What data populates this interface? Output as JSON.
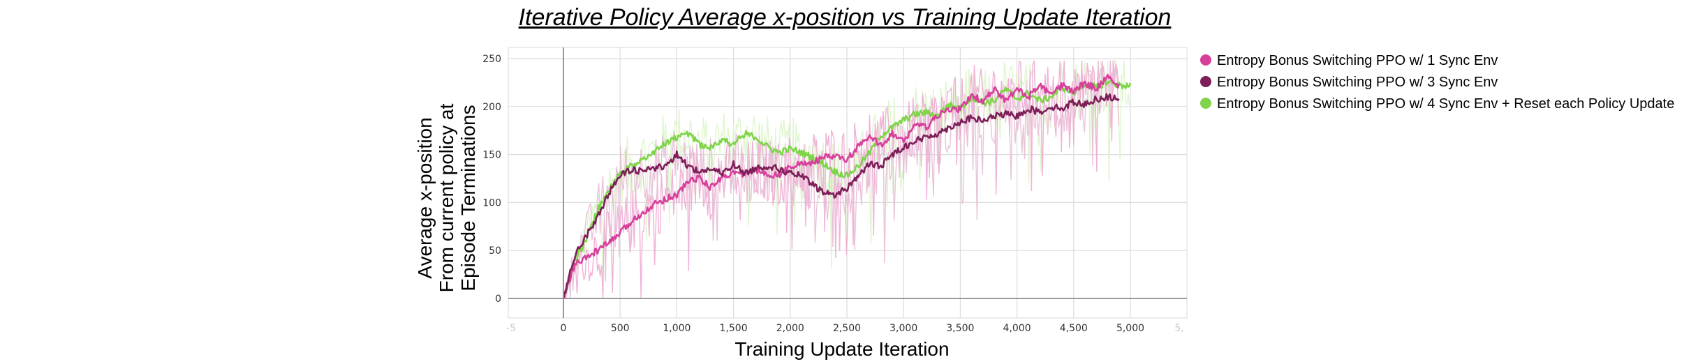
{
  "chart_data": {
    "type": "line",
    "title": "Iterative Policy Average x-position vs Training Update Iteration",
    "xlabel": "Training Update Iteration",
    "ylabel_lines": [
      "Average x-position",
      "From current policy at",
      "Episode Terminations"
    ],
    "xlim": [
      -500,
      5500
    ],
    "ylim": [
      -20,
      255
    ],
    "x_ticks": [
      0,
      500,
      1000,
      1500,
      2000,
      2500,
      3000,
      3500,
      4000,
      4500,
      5000
    ],
    "x_tick_labels": [
      "0",
      "500",
      "1,000",
      "1,500",
      "2,000",
      "2,500",
      "3,000",
      "3,500",
      "4,000",
      "4,500",
      "5,000"
    ],
    "x_edge_labels": [
      "-5",
      "5,"
    ],
    "y_ticks": [
      0,
      50,
      100,
      150,
      200,
      250
    ],
    "y_tick_labels": [
      "0",
      "50",
      "100",
      "150",
      "200",
      "250"
    ],
    "grid": true,
    "legend_position": "right",
    "series": [
      {
        "name": "Entropy Bonus Switching PPO w/ 1 Sync Env",
        "color": "#d6409b",
        "raw_color": "#eeaad2",
        "x": [
          0,
          100,
          200,
          300,
          400,
          500,
          600,
          700,
          800,
          900,
          1000,
          1100,
          1200,
          1300,
          1400,
          1500,
          1600,
          1700,
          1800,
          1900,
          2000,
          2100,
          2200,
          2300,
          2400,
          2500,
          2600,
          2700,
          2800,
          2900,
          3000,
          3100,
          3200,
          3300,
          3400,
          3500,
          3600,
          3700,
          3800,
          3900,
          4000,
          4100,
          4200,
          4300,
          4400,
          4500,
          4600,
          4700,
          4800,
          4900
        ],
        "values": [
          0,
          35,
          42,
          50,
          58,
          68,
          80,
          90,
          98,
          104,
          108,
          122,
          126,
          115,
          127,
          131,
          130,
          134,
          130,
          128,
          138,
          140,
          142,
          147,
          148,
          144,
          158,
          168,
          160,
          172,
          163,
          182,
          178,
          190,
          197,
          197,
          212,
          205,
          218,
          206,
          218,
          210,
          222,
          212,
          222,
          216,
          225,
          218,
          232,
          222
        ]
      },
      {
        "name": "Entropy Bonus Switching PPO w/ 3 Sync Env",
        "color": "#7d1f58",
        "raw_color": "#e7bcd6",
        "x": [
          0,
          100,
          200,
          300,
          400,
          500,
          600,
          700,
          800,
          900,
          1000,
          1100,
          1200,
          1300,
          1400,
          1500,
          1600,
          1700,
          1800,
          1900,
          2000,
          2100,
          2200,
          2300,
          2400,
          2500,
          2600,
          2700,
          2800,
          2900,
          3000,
          3100,
          3200,
          3300,
          3400,
          3500,
          3600,
          3700,
          3800,
          3900,
          4000,
          4100,
          4200,
          4300,
          4400,
          4500,
          4600,
          4700,
          4800,
          4900
        ],
        "values": [
          0,
          45,
          65,
          85,
          110,
          128,
          134,
          132,
          136,
          138,
          150,
          138,
          132,
          135,
          130,
          140,
          130,
          136,
          138,
          135,
          130,
          128,
          118,
          110,
          108,
          115,
          128,
          140,
          138,
          150,
          158,
          164,
          168,
          172,
          178,
          184,
          188,
          185,
          190,
          192,
          190,
          198,
          194,
          200,
          198,
          205,
          202,
          208,
          210,
          208
        ]
      },
      {
        "name": "Entropy Bonus Switching PPO w/ 4 Sync Env + Reset each Policy Update",
        "color": "#7fd44a",
        "raw_color": "#dcf5c9",
        "x": [
          0,
          100,
          200,
          300,
          400,
          500,
          600,
          700,
          800,
          900,
          1000,
          1100,
          1200,
          1300,
          1400,
          1500,
          1600,
          1700,
          1800,
          1900,
          2000,
          2100,
          2200,
          2300,
          2400,
          2500,
          2600,
          2700,
          2800,
          2900,
          3000,
          3100,
          3200,
          3300,
          3400,
          3500,
          3600,
          3700,
          3800,
          3900,
          4000,
          4100,
          4200,
          4300,
          4400,
          4500,
          4600,
          4700,
          4800,
          4900,
          5000
        ],
        "values": [
          0,
          38,
          62,
          92,
          112,
          130,
          138,
          146,
          152,
          162,
          168,
          172,
          160,
          158,
          166,
          160,
          172,
          168,
          158,
          152,
          156,
          152,
          147,
          140,
          132,
          128,
          138,
          152,
          170,
          178,
          186,
          192,
          194,
          190,
          202,
          198,
          210,
          204,
          206,
          218,
          208,
          214,
          206,
          210,
          220,
          214,
          224,
          220,
          226,
          222,
          222
        ]
      }
    ]
  }
}
